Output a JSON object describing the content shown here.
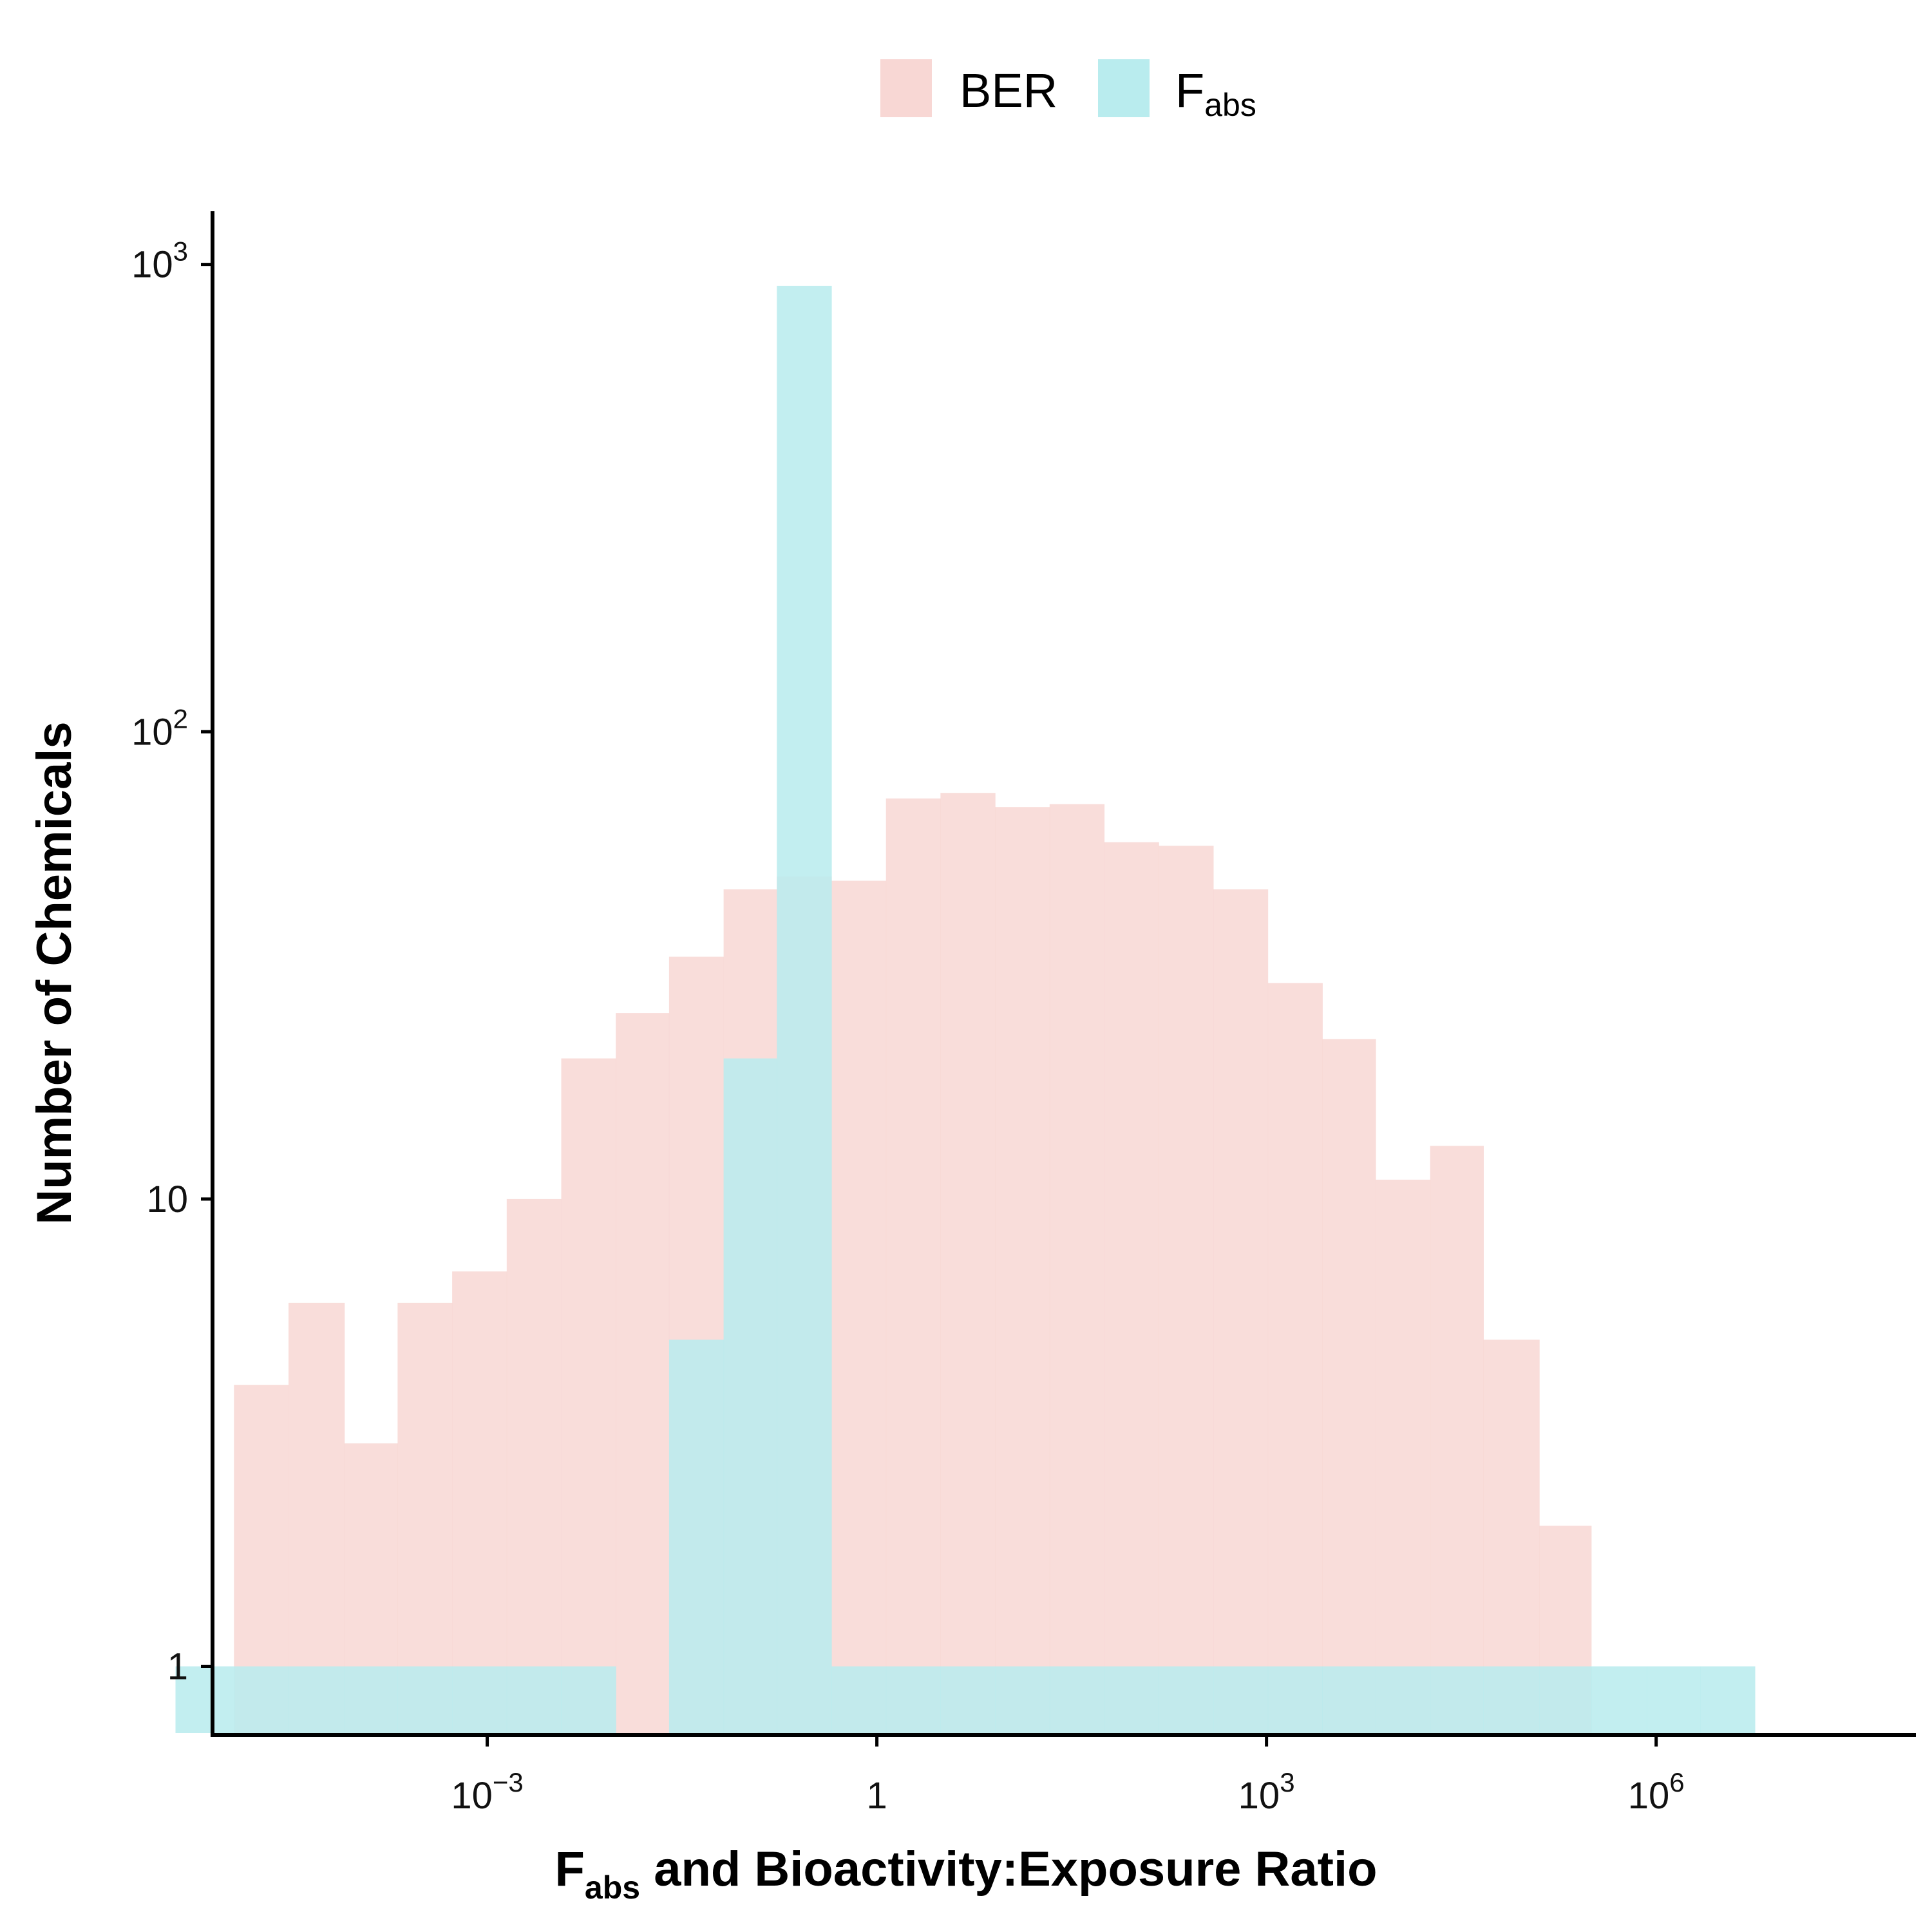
{
  "chart_data": {
    "type": "bar",
    "subtype": "overlapping histogram",
    "title": "",
    "xlabel": {
      "main": "F",
      "sub": "abs",
      "rest": " and Bioactivity:Exposure Ratio"
    },
    "ylabel": "Number of Chemicals",
    "x_scale": "log10",
    "y_scale": "log10",
    "xlim": [
      7.94e-06,
      100000000
    ],
    "ylim": [
      0.72,
      1300
    ],
    "x_ticks": [
      {
        "value": 0.001,
        "base": "10",
        "exp": "−3"
      },
      {
        "value": 1,
        "base": "1",
        "exp": ""
      },
      {
        "value": 1000,
        "base": "10",
        "exp": "3"
      },
      {
        "value": 1000000,
        "base": "10",
        "exp": "6"
      }
    ],
    "y_ticks": [
      {
        "value": 1,
        "base": "1",
        "exp": ""
      },
      {
        "value": 10,
        "base": "10",
        "exp": ""
      },
      {
        "value": 100,
        "base": "10",
        "exp": "2"
      },
      {
        "value": 1000,
        "base": "10",
        "exp": "3"
      }
    ],
    "grid": false,
    "legend": {
      "position": "top-center",
      "entries": [
        {
          "label": "BER",
          "sub": "",
          "color": "#f8d7d4"
        },
        {
          "label": "F",
          "sub": "abs",
          "color": "#b9ecee"
        }
      ]
    },
    "bin_edges_log10": [
      -5.4,
      -4.95,
      -4.53,
      -4.1,
      -3.69,
      -3.27,
      -2.85,
      -2.43,
      -2.01,
      -1.6,
      -1.18,
      -0.77,
      -0.35,
      0.07,
      0.49,
      0.91,
      1.33,
      1.75,
      2.17,
      2.59,
      3.01,
      3.43,
      3.84,
      4.26,
      4.67,
      5.1,
      5.5,
      5.93,
      6.34,
      6.76
    ],
    "series": [
      {
        "name": "BER",
        "color": "#f8d7d4",
        "opacity": 0.85,
        "values": [
          0,
          4,
          6,
          3,
          6,
          7,
          10,
          20,
          25,
          33,
          46,
          49,
          48,
          72,
          74,
          69,
          70,
          58,
          57,
          46,
          29,
          22,
          11,
          13,
          5,
          2,
          0,
          0,
          0
        ]
      },
      {
        "name": "Fabs",
        "color": "#b9ecee",
        "opacity": 0.88,
        "values": [
          1,
          1,
          1,
          1,
          1,
          1,
          1,
          1,
          0,
          5,
          20,
          900,
          1,
          1,
          1,
          1,
          1,
          1,
          1,
          1,
          1,
          1,
          1,
          1,
          1,
          1,
          1,
          1,
          1
        ]
      }
    ]
  }
}
